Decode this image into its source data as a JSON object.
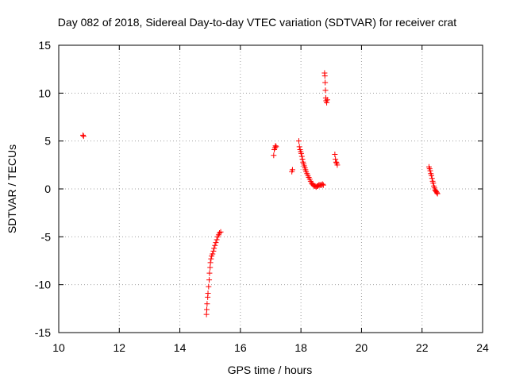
{
  "chart_data": {
    "type": "scatter",
    "title": "Day 082 of 2018, Sidereal Day-to-day VTEC variation (SDTVAR) for receiver crat",
    "xlabel": "GPS time / hours",
    "ylabel": "SDTVAR / TECUs",
    "xlim": [
      10,
      24
    ],
    "ylim": [
      -15,
      15
    ],
    "xticks": [
      "10",
      "12",
      "14",
      "16",
      "18",
      "20",
      "22",
      "24"
    ],
    "yticks": [
      "-15",
      "-10",
      "-5",
      "0",
      "5",
      "10",
      "15"
    ],
    "grid": true,
    "marker": "+",
    "color": "#ff0000",
    "series": [
      {
        "name": "SDTVAR",
        "points": [
          [
            10.8,
            5.6
          ],
          [
            10.82,
            5.5
          ],
          [
            14.88,
            -13.1
          ],
          [
            14.89,
            -12.6
          ],
          [
            14.9,
            -12.0
          ],
          [
            14.92,
            -11.3
          ],
          [
            14.93,
            -10.9
          ],
          [
            14.95,
            -10.2
          ],
          [
            14.97,
            -9.5
          ],
          [
            14.98,
            -8.8
          ],
          [
            15.0,
            -8.2
          ],
          [
            15.01,
            -7.7
          ],
          [
            15.03,
            -7.3
          ],
          [
            15.05,
            -7.0
          ],
          [
            15.08,
            -6.8
          ],
          [
            15.11,
            -6.5
          ],
          [
            15.13,
            -6.2
          ],
          [
            15.16,
            -5.9
          ],
          [
            15.19,
            -5.6
          ],
          [
            15.22,
            -5.3
          ],
          [
            15.25,
            -5.0
          ],
          [
            15.28,
            -4.8
          ],
          [
            15.31,
            -4.6
          ],
          [
            15.35,
            -4.5
          ],
          [
            17.1,
            3.5
          ],
          [
            17.12,
            4.1
          ],
          [
            17.14,
            4.3
          ],
          [
            17.16,
            4.5
          ],
          [
            17.18,
            4.4
          ],
          [
            17.7,
            1.8
          ],
          [
            17.72,
            2.0
          ],
          [
            17.93,
            5.0
          ],
          [
            17.95,
            4.4
          ],
          [
            17.97,
            4.1
          ],
          [
            17.99,
            3.9
          ],
          [
            18.01,
            3.7
          ],
          [
            18.03,
            3.4
          ],
          [
            18.05,
            3.1
          ],
          [
            18.07,
            2.8
          ],
          [
            18.09,
            2.6
          ],
          [
            18.11,
            2.4
          ],
          [
            18.13,
            2.2
          ],
          [
            18.15,
            2.0
          ],
          [
            18.17,
            1.8
          ],
          [
            18.2,
            1.6
          ],
          [
            18.23,
            1.4
          ],
          [
            18.26,
            1.2
          ],
          [
            18.29,
            1.0
          ],
          [
            18.32,
            0.8
          ],
          [
            18.35,
            0.6
          ],
          [
            18.38,
            0.5
          ],
          [
            18.41,
            0.4
          ],
          [
            18.44,
            0.3
          ],
          [
            18.47,
            0.3
          ],
          [
            18.5,
            0.2
          ],
          [
            18.53,
            0.3
          ],
          [
            18.56,
            0.3
          ],
          [
            18.59,
            0.4
          ],
          [
            18.62,
            0.4
          ],
          [
            18.65,
            0.4
          ],
          [
            18.68,
            0.4
          ],
          [
            18.71,
            0.5
          ],
          [
            18.74,
            0.4
          ],
          [
            18.78,
            12.1
          ],
          [
            18.79,
            11.8
          ],
          [
            18.8,
            11.1
          ],
          [
            18.81,
            10.3
          ],
          [
            18.82,
            9.5
          ],
          [
            18.83,
            9.2
          ],
          [
            18.85,
            9.0
          ],
          [
            18.87,
            9.3
          ],
          [
            19.12,
            3.6
          ],
          [
            19.14,
            3.1
          ],
          [
            19.16,
            2.8
          ],
          [
            19.18,
            2.7
          ],
          [
            19.2,
            2.5
          ],
          [
            22.23,
            2.3
          ],
          [
            22.25,
            2.1
          ],
          [
            22.27,
            1.9
          ],
          [
            22.29,
            1.6
          ],
          [
            22.31,
            1.4
          ],
          [
            22.33,
            1.1
          ],
          [
            22.35,
            0.8
          ],
          [
            22.37,
            0.6
          ],
          [
            22.39,
            0.3
          ],
          [
            22.41,
            0.1
          ],
          [
            22.43,
            -0.1
          ],
          [
            22.45,
            -0.2
          ],
          [
            22.47,
            -0.3
          ],
          [
            22.49,
            -0.4
          ],
          [
            22.51,
            -0.5
          ]
        ]
      }
    ]
  }
}
